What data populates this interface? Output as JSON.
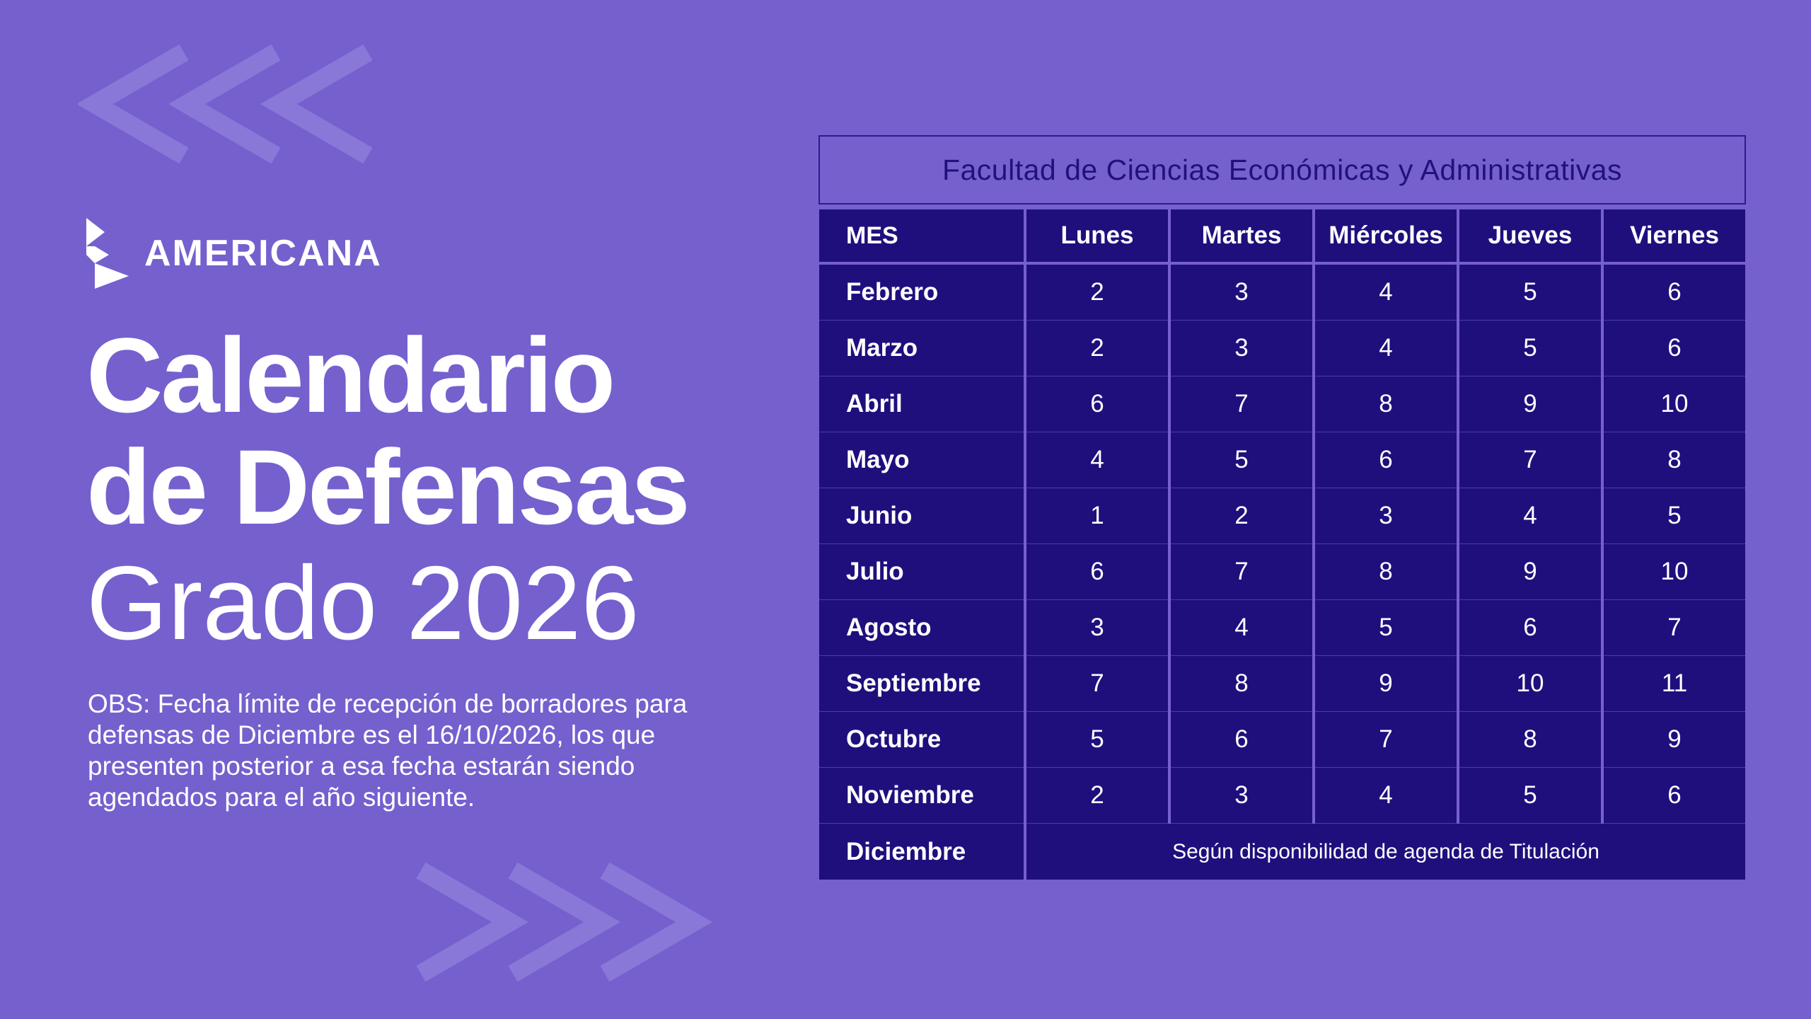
{
  "brand": {
    "name": "AMERICANA"
  },
  "title": {
    "line1": "Calendario",
    "line2": "de Defensas",
    "line3": "Grado 2026"
  },
  "obs": {
    "text": "OBS: Fecha límite de recepción de borradores para defensas de Diciembre es el 16/10/2026, los que presenten posterior a esa fecha estarán siendo agendados para el año siguiente."
  },
  "table": {
    "faculty": "Facultad de Ciencias Económicas y Administrativas",
    "headers": [
      "MES",
      "Lunes",
      "Martes",
      "Miércoles",
      "Jueves",
      "Viernes"
    ],
    "rows": [
      {
        "month": "Febrero",
        "days": [
          "2",
          "3",
          "4",
          "5",
          "6"
        ]
      },
      {
        "month": "Marzo",
        "days": [
          "2",
          "3",
          "4",
          "5",
          "6"
        ]
      },
      {
        "month": "Abril",
        "days": [
          "6",
          "7",
          "8",
          "9",
          "10"
        ]
      },
      {
        "month": "Mayo",
        "days": [
          "4",
          "5",
          "6",
          "7",
          "8"
        ]
      },
      {
        "month": "Junio",
        "days": [
          "1",
          "2",
          "3",
          "4",
          "5"
        ]
      },
      {
        "month": "Julio",
        "days": [
          "6",
          "7",
          "8",
          "9",
          "10"
        ]
      },
      {
        "month": "Agosto",
        "days": [
          "3",
          "4",
          "5",
          "6",
          "7"
        ]
      },
      {
        "month": "Septiembre",
        "days": [
          "7",
          "8",
          "9",
          "10",
          "11"
        ]
      },
      {
        "month": "Octubre",
        "days": [
          "5",
          "6",
          "7",
          "8",
          "9"
        ]
      },
      {
        "month": "Noviembre",
        "days": [
          "2",
          "3",
          "4",
          "5",
          "6"
        ]
      }
    ],
    "december": {
      "month": "Diciembre",
      "note": "Según disponibilidad de agenda de Titulación"
    }
  },
  "colors": {
    "background": "#7560ce",
    "table_cell": "#1f0f7d",
    "faculty_text": "#21127a",
    "text": "#ffffff"
  }
}
